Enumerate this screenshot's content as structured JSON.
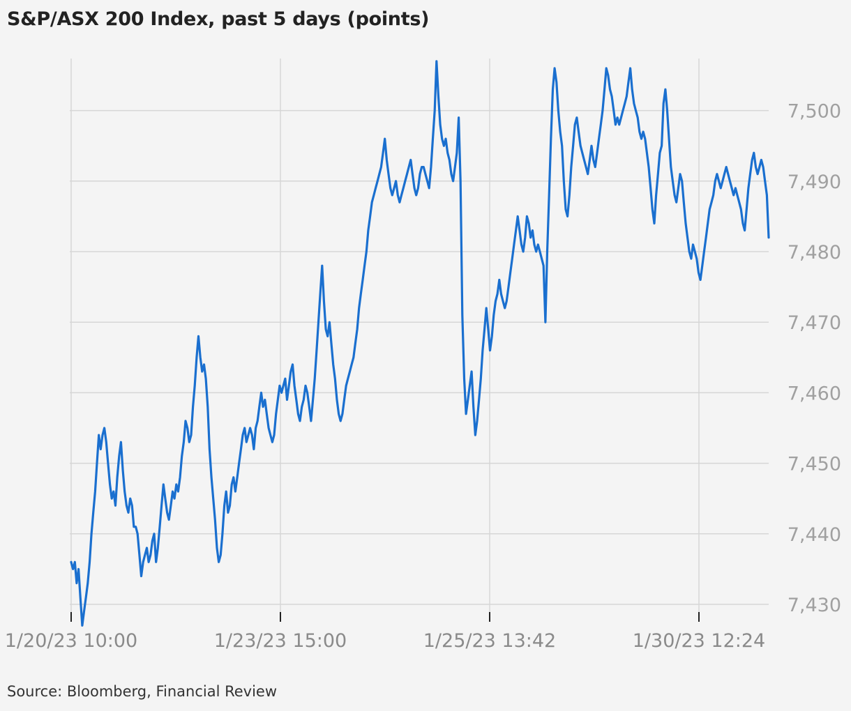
{
  "title": "S&P/ASX 200 Index, past 5 days (points)",
  "source": "Source: Bloomberg, Financial Review",
  "chart_data": {
    "type": "line",
    "title": "S&P/ASX 200 Index, past 5 days (points)",
    "xlabel": "",
    "ylabel": "",
    "x_tick_labels": [
      "1/20/23 10:00",
      "1/23/23 15:00",
      "1/25/23 13:42",
      "1/30/23 12:24"
    ],
    "y_ticks": [
      7430,
      7440,
      7450,
      7460,
      7470,
      7480,
      7490,
      7500
    ],
    "y_tick_labels": [
      "7,430",
      "7,440",
      "7,450",
      "7,460",
      "7,470",
      "7,480",
      "7,490",
      "7,500"
    ],
    "ylim": [
      7428,
      7508
    ],
    "grid": true,
    "color": "#1a6fcf",
    "series": [
      {
        "values": [
          7436,
          7435,
          7436,
          7433,
          7435,
          7431,
          7427,
          7429,
          7431,
          7433,
          7436,
          7440,
          7443,
          7446,
          7450,
          7454,
          7452,
          7454,
          7455,
          7453,
          7450,
          7447,
          7445,
          7446,
          7444,
          7448,
          7451,
          7453,
          7449,
          7446,
          7444,
          7443,
          7445,
          7444,
          7441,
          7441,
          7440,
          7437,
          7434,
          7436,
          7437,
          7438,
          7436,
          7437,
          7439,
          7440,
          7436,
          7438,
          7441,
          7444,
          7447,
          7445,
          7443,
          7442,
          7444,
          7446,
          7445,
          7447,
          7446,
          7448,
          7451,
          7453,
          7456,
          7455,
          7453,
          7454,
          7458,
          7461,
          7465,
          7468,
          7465,
          7463,
          7464,
          7462,
          7458,
          7452,
          7448,
          7445,
          7442,
          7438,
          7436,
          7437,
          7440,
          7444,
          7446,
          7443,
          7444,
          7447,
          7448,
          7446,
          7448,
          7450,
          7452,
          7454,
          7455,
          7453,
          7454,
          7455,
          7454,
          7452,
          7455,
          7456,
          7458,
          7460,
          7458,
          7459,
          7457,
          7455,
          7454,
          7453,
          7454,
          7457,
          7459,
          7461,
          7460,
          7461,
          7462,
          7459,
          7461,
          7463,
          7464,
          7461,
          7459,
          7457,
          7456,
          7458,
          7459,
          7461,
          7460,
          7458,
          7456,
          7459,
          7462,
          7466,
          7470,
          7474,
          7478,
          7473,
          7469,
          7468,
          7470,
          7467,
          7464,
          7462,
          7459,
          7457,
          7456,
          7457,
          7459,
          7461,
          7462,
          7463,
          7464,
          7465,
          7467,
          7469,
          7472,
          7474,
          7476,
          7478,
          7480,
          7483,
          7485,
          7487,
          7488,
          7489,
          7490,
          7491,
          7492,
          7494,
          7496,
          7493,
          7491,
          7489,
          7488,
          7489,
          7490,
          7488,
          7487,
          7488,
          7489,
          7490,
          7491,
          7492,
          7493,
          7491,
          7489,
          7488,
          7489,
          7491,
          7492,
          7492,
          7491,
          7490,
          7489,
          7492,
          7496,
          7500,
          7507,
          7502,
          7498,
          7496,
          7495,
          7496,
          7494,
          7493,
          7491,
          7490,
          7492,
          7494,
          7499,
          7490,
          7471,
          7462,
          7457,
          7459,
          7461,
          7463,
          7458,
          7454,
          7456,
          7459,
          7462,
          7466,
          7469,
          7472,
          7469,
          7466,
          7468,
          7471,
          7473,
          7474,
          7476,
          7474,
          7473,
          7472,
          7473,
          7475,
          7477,
          7479,
          7481,
          7483,
          7485,
          7483,
          7481,
          7480,
          7482,
          7485,
          7484,
          7482,
          7483,
          7481,
          7480,
          7481,
          7480,
          7479,
          7478,
          7470,
          7480,
          7488,
          7496,
          7503,
          7506,
          7504,
          7500,
          7497,
          7495,
          7490,
          7486,
          7485,
          7488,
          7492,
          7495,
          7498,
          7499,
          7497,
          7495,
          7494,
          7493,
          7492,
          7491,
          7493,
          7495,
          7493,
          7492,
          7494,
          7496,
          7498,
          7500,
          7503,
          7506,
          7505,
          7503,
          7502,
          7500,
          7498,
          7499,
          7498,
          7499,
          7500,
          7501,
          7502,
          7504,
          7506,
          7503,
          7501,
          7500,
          7499,
          7497,
          7496,
          7497,
          7496,
          7494,
          7492,
          7489,
          7486,
          7484,
          7488,
          7491,
          7494,
          7495,
          7501,
          7503,
          7500,
          7496,
          7492,
          7490,
          7488,
          7487,
          7489,
          7491,
          7490,
          7487,
          7484,
          7482,
          7480,
          7479,
          7481,
          7480,
          7479,
          7477,
          7476,
          7478,
          7480,
          7482,
          7484,
          7486,
          7487,
          7488,
          7490,
          7491,
          7490,
          7489,
          7490,
          7491,
          7492,
          7491,
          7490,
          7489,
          7488,
          7489,
          7488,
          7487,
          7486,
          7484,
          7483,
          7486,
          7489,
          7491,
          7493,
          7494,
          7492,
          7491,
          7492,
          7493,
          7492,
          7490,
          7488,
          7482
        ]
      }
    ]
  }
}
